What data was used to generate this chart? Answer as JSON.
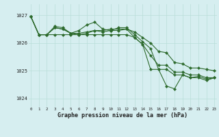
{
  "bg_color": "#d6eef0",
  "grid_color": "#b8ddd8",
  "line_color": "#2d6a2d",
  "marker_color": "#2d6a2d",
  "xlabel": "Graphe pression niveau de la mer (hPa)",
  "ylim": [
    1023.7,
    1027.4
  ],
  "xlim": [
    -0.3,
    23.3
  ],
  "yticks": [
    1024,
    1025,
    1026,
    1027
  ],
  "xticks": [
    0,
    1,
    2,
    3,
    4,
    5,
    6,
    7,
    8,
    9,
    10,
    11,
    12,
    13,
    14,
    15,
    16,
    17,
    18,
    19,
    20,
    21,
    22,
    23
  ],
  "series": [
    [
      1026.95,
      1026.3,
      1026.3,
      1026.55,
      1026.5,
      1026.35,
      1026.35,
      1026.4,
      1026.45,
      1026.45,
      1026.5,
      1026.5,
      1026.5,
      1026.4,
      1026.2,
      1026.0,
      1025.7,
      1025.65,
      1025.3,
      1025.25,
      1025.1,
      1025.1,
      1025.05,
      1025.0
    ],
    [
      1026.95,
      1026.3,
      1026.3,
      1026.6,
      1026.55,
      1026.35,
      1026.45,
      1026.65,
      1026.75,
      1026.5,
      1026.45,
      1026.55,
      1026.55,
      1026.3,
      1026.05,
      1025.8,
      1025.05,
      1025.05,
      1024.85,
      1024.85,
      1024.75,
      1024.75,
      1024.65,
      1024.75
    ],
    [
      1026.95,
      1026.3,
      1026.3,
      1026.55,
      1026.5,
      1026.35,
      1026.3,
      1026.35,
      1026.45,
      1026.4,
      1026.45,
      1026.45,
      1026.5,
      1026.2,
      1025.95,
      1025.05,
      1025.05,
      1024.45,
      1024.35,
      1024.85,
      1024.75,
      1024.8,
      1024.7,
      1024.75
    ],
    [
      1026.95,
      1026.3,
      1026.3,
      1026.3,
      1026.3,
      1026.3,
      1026.3,
      1026.3,
      1026.3,
      1026.3,
      1026.3,
      1026.3,
      1026.3,
      1026.2,
      1025.95,
      1025.55,
      1025.2,
      1025.2,
      1024.95,
      1024.95,
      1024.85,
      1024.85,
      1024.75,
      1024.75
    ]
  ]
}
